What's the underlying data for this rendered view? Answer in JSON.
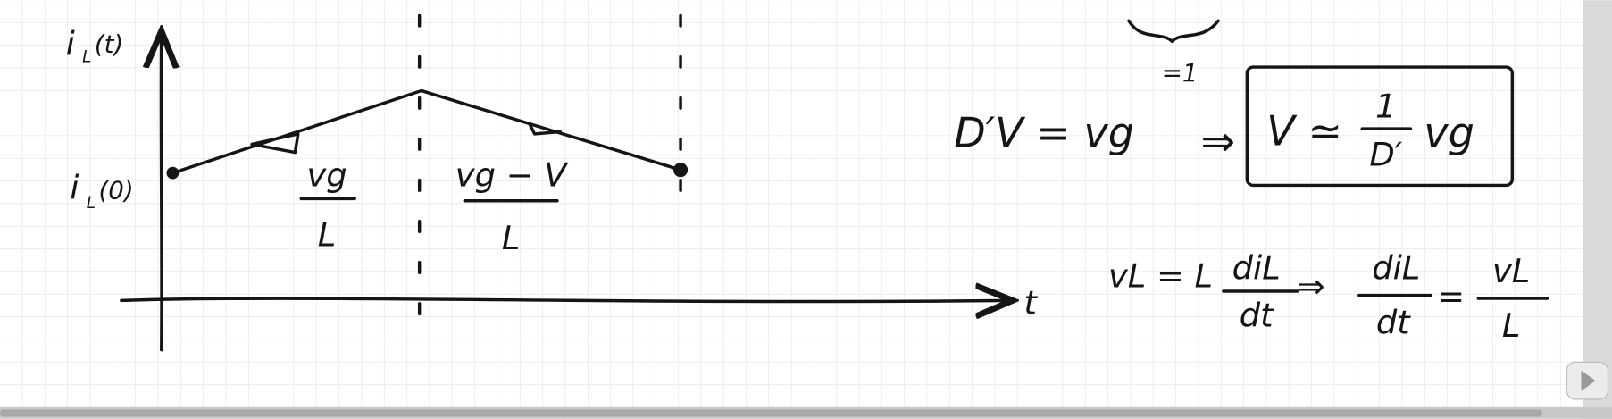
{
  "graph": {
    "y_axis_label": {
      "base": "i",
      "sub": "L",
      "rest": "(t)"
    },
    "initial_label": {
      "base": "i",
      "sub": "L",
      "rest": "(0)"
    },
    "x_axis_label": "t",
    "slope_1": {
      "numerator": "vg",
      "denominator": "L"
    },
    "slope_2": {
      "numerator": "vg − V",
      "denominator": "L"
    }
  },
  "equations": {
    "top_annotation": "=1",
    "balance": "D′V = vg",
    "implies_1": "⇒",
    "result": {
      "lhs": "V ≃",
      "numerator": "1",
      "denominator": "D′",
      "rhs": "vg"
    },
    "inductor": {
      "lhs": "vL = L",
      "numerator": "diL",
      "denominator": "dt"
    },
    "implies_2": "⇒",
    "derivative": {
      "numerator": "diL",
      "denominator": "dt",
      "equals": "=",
      "rhs_numerator": "vL",
      "rhs_denominator": "L"
    }
  }
}
